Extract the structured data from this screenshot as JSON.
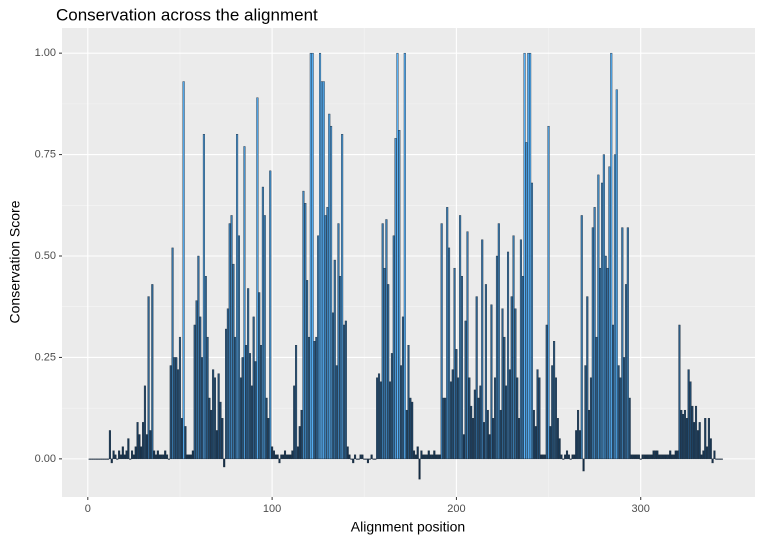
{
  "chart_data": {
    "type": "bar",
    "title": "Conservation across the alignment",
    "xlabel": "Alignment position",
    "ylabel": "Conservation Score",
    "xlim": [
      -14,
      362
    ],
    "xticks": [
      0,
      100,
      200,
      300
    ],
    "ylim": [
      -0.094,
      1.062
    ],
    "yticks": [
      {
        "value": 0,
        "label": "0.00"
      },
      {
        "value": 0.25,
        "label": "0.25"
      },
      {
        "value": 0.5,
        "label": "0.50"
      },
      {
        "value": 0.75,
        "label": "0.75"
      },
      {
        "value": 1,
        "label": "1.00"
      }
    ],
    "grid": true,
    "fill_gradient": {
      "low": "#132B43",
      "high": "#56B1F7"
    },
    "x": [
      1,
      2,
      3,
      4,
      5,
      6,
      7,
      8,
      9,
      10,
      11,
      12,
      13,
      14,
      15,
      16,
      17,
      18,
      19,
      20,
      21,
      22,
      23,
      24,
      25,
      26,
      27,
      28,
      29,
      30,
      31,
      32,
      33,
      34,
      35,
      36,
      37,
      38,
      39,
      40,
      41,
      42,
      43,
      44,
      45,
      46,
      47,
      48,
      49,
      50,
      51,
      52,
      53,
      54,
      55,
      56,
      57,
      58,
      59,
      60,
      61,
      62,
      63,
      64,
      65,
      66,
      67,
      68,
      69,
      70,
      71,
      72,
      73,
      74,
      75,
      76,
      77,
      78,
      79,
      80,
      81,
      82,
      83,
      84,
      85,
      86,
      87,
      88,
      89,
      90,
      91,
      92,
      93,
      94,
      95,
      96,
      97,
      98,
      99,
      100,
      101,
      102,
      103,
      104,
      105,
      106,
      107,
      108,
      109,
      110,
      111,
      112,
      113,
      114,
      115,
      116,
      117,
      118,
      119,
      120,
      121,
      122,
      123,
      124,
      125,
      126,
      127,
      128,
      129,
      130,
      131,
      132,
      133,
      134,
      135,
      136,
      137,
      138,
      139,
      140,
      141,
      142,
      143,
      144,
      145,
      146,
      147,
      148,
      149,
      150,
      151,
      152,
      153,
      154,
      155,
      156,
      157,
      158,
      159,
      160,
      161,
      162,
      163,
      164,
      165,
      166,
      167,
      168,
      169,
      170,
      171,
      172,
      173,
      174,
      175,
      176,
      177,
      178,
      179,
      180,
      181,
      182,
      183,
      184,
      185,
      186,
      187,
      188,
      189,
      190,
      191,
      192,
      193,
      194,
      195,
      196,
      197,
      198,
      199,
      200,
      201,
      202,
      203,
      204,
      205,
      206,
      207,
      208,
      209,
      210,
      211,
      212,
      213,
      214,
      215,
      216,
      217,
      218,
      219,
      220,
      221,
      222,
      223,
      224,
      225,
      226,
      227,
      228,
      229,
      230,
      231,
      232,
      233,
      234,
      235,
      236,
      237,
      238,
      239,
      240,
      241,
      242,
      243,
      244,
      245,
      246,
      247,
      248,
      249,
      250,
      251,
      252,
      253,
      254,
      255,
      256,
      257,
      258,
      259,
      260,
      261,
      262,
      263,
      264,
      265,
      266,
      267,
      268,
      269,
      270,
      271,
      272,
      273,
      274,
      275,
      276,
      277,
      278,
      279,
      280,
      281,
      282,
      283,
      284,
      285,
      286,
      287,
      288,
      289,
      290,
      291,
      292,
      293,
      294,
      295,
      296,
      297,
      298,
      299,
      300,
      301,
      302,
      303,
      304,
      305,
      306,
      307,
      308,
      309,
      310,
      311,
      312,
      313,
      314,
      315,
      316,
      317,
      318,
      319,
      320,
      321,
      322,
      323,
      324,
      325,
      326,
      327,
      328,
      329,
      330,
      331,
      332,
      333,
      334,
      335,
      336,
      337,
      338,
      339,
      340,
      341,
      342,
      343,
      344
    ],
    "values": [
      0,
      0,
      0,
      0,
      0,
      0,
      0,
      0,
      0,
      0,
      0,
      0.07,
      -0.01,
      0.02,
      0.01,
      0,
      0.02,
      0.01,
      0.03,
      0.01,
      0.02,
      0.05,
      0,
      0.02,
      0.01,
      0.03,
      0.09,
      0.06,
      0.03,
      0.09,
      0.18,
      0.06,
      0.4,
      0.07,
      0.43,
      0.02,
      0.01,
      0.02,
      0.01,
      0.01,
      0.01,
      0.02,
      0.01,
      0,
      0.23,
      0.52,
      0.25,
      0.25,
      0.22,
      0.3,
      0.1,
      0.93,
      0.08,
      0.01,
      0.01,
      0.01,
      0.02,
      0.33,
      0.39,
      0.5,
      0.35,
      0.25,
      0.8,
      0.45,
      0.3,
      0.15,
      0.12,
      0.22,
      0.2,
      0.07,
      0.21,
      0.14,
      0.1,
      -0.02,
      0.32,
      0.37,
      0.58,
      0.6,
      0.48,
      0.3,
      0.8,
      0.55,
      0.2,
      0.25,
      0.77,
      0.28,
      0.42,
      0.26,
      0.18,
      0.35,
      0.24,
      0.89,
      0.41,
      0.28,
      0.67,
      0.6,
      0.15,
      0.1,
      0.71,
      0.03,
      0.02,
      0.01,
      0.01,
      -0.01,
      0.01,
      0.01,
      0.02,
      0.01,
      0.01,
      0.01,
      0.02,
      0.18,
      0.28,
      0.03,
      0.08,
      0.12,
      0.66,
      0.63,
      0.44,
      0.3,
      1,
      1,
      0.29,
      0.3,
      0.55,
      1,
      0.93,
      0.93,
      0.6,
      0.62,
      0.85,
      0.82,
      0.36,
      0.49,
      0.23,
      0.58,
      0.45,
      0.8,
      0.33,
      0.34,
      0.03,
      0.01,
      0,
      -0.01,
      0.01,
      0,
      0,
      0.01,
      0.01,
      0,
      0,
      -0.01,
      0,
      0.01,
      0,
      0,
      0.2,
      0.21,
      0.19,
      0.58,
      0.47,
      0.59,
      0.43,
      0.19,
      0.26,
      0.55,
      0.79,
      1,
      0.81,
      0.23,
      0.35,
      1,
      0.12,
      0.28,
      0.15,
      0.14,
      0.02,
      0.01,
      0.03,
      -0.05,
      0.02,
      0.01,
      0.01,
      0.01,
      0.02,
      0.01,
      0.01,
      0.02,
      0.01,
      0.01,
      0.01,
      0.58,
      0.15,
      0.15,
      0.62,
      0.52,
      0.19,
      0.22,
      0.47,
      0.27,
      0.2,
      0.6,
      0.45,
      0.06,
      0.34,
      0.56,
      0.2,
      0.13,
      0.1,
      0.17,
      0.4,
      0.15,
      0.18,
      0.54,
      0.09,
      0.43,
      0.12,
      0.06,
      0.38,
      0.1,
      0.2,
      0.5,
      0.58,
      0.12,
      0.37,
      0.3,
      0.18,
      0.51,
      0.22,
      0.4,
      0.55,
      0.37,
      0.2,
      0.1,
      0.54,
      0.45,
      1,
      0.78,
      1,
      1,
      0.68,
      0.12,
      0.08,
      0.22,
      0.2,
      0.01,
      0.01,
      0.01,
      0.33,
      0.82,
      0.08,
      0.23,
      0.29,
      0.2,
      0.1,
      0.05,
      0.01,
      0,
      0.01,
      0.02,
      0.01,
      0,
      0.01,
      0.01,
      0.07,
      0.12,
      0.07,
      0.6,
      -0.03,
      0.23,
      0.4,
      0.12,
      0.2,
      0.57,
      0.62,
      0.3,
      0.7,
      0.47,
      0.68,
      0.75,
      0.5,
      0.47,
      0.72,
      1,
      0.33,
      0.75,
      0.91,
      0.23,
      0.2,
      0.57,
      0.25,
      0.43,
      0.57,
      0.15,
      0.01,
      0.01,
      0.01,
      0.01,
      0.01,
      0,
      0.01,
      0.01,
      0.01,
      0.01,
      0.01,
      0.01,
      0.02,
      0.02,
      0.02,
      0.01,
      0.01,
      0.01,
      0.01,
      0.01,
      0.01,
      0.02,
      0.01,
      0.01,
      0.02,
      0.02,
      0.33,
      0.12,
      0.11,
      0.12,
      0.1,
      0.22,
      0.19,
      0.13,
      0.09,
      0.13,
      0.07,
      0.09,
      0.01,
      0.02,
      0.1,
      0.03,
      0.1,
      0.05,
      -0.01,
      0.02,
      0,
      0,
      0,
      0
    ]
  }
}
